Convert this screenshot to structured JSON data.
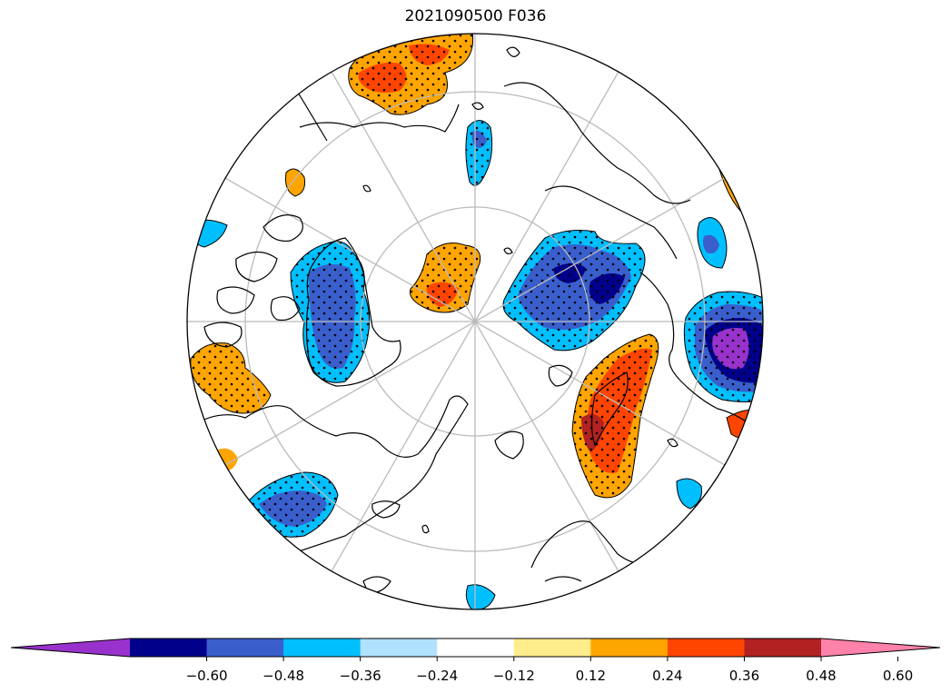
{
  "title": "2021090500 F036",
  "projection": "north-polar-stereographic",
  "colorbar": {
    "extend": "both",
    "colors": [
      "#9932cc",
      "#00008b",
      "#3a5fcd",
      "#00bfff",
      "#b0e2ff",
      "#ffffff",
      "#ffec8b",
      "#ffa500",
      "#ff4500",
      "#b22222",
      "#ff82ab"
    ],
    "ticks": [
      "−0.60",
      "−0.48",
      "−0.36",
      "−0.24",
      "−0.12",
      "0.12",
      "0.24",
      "0.36",
      "0.48",
      "0.60"
    ]
  },
  "colors": {
    "coastline": "#000000",
    "graticule": "#bbbbbb",
    "stipple": "#000000"
  }
}
